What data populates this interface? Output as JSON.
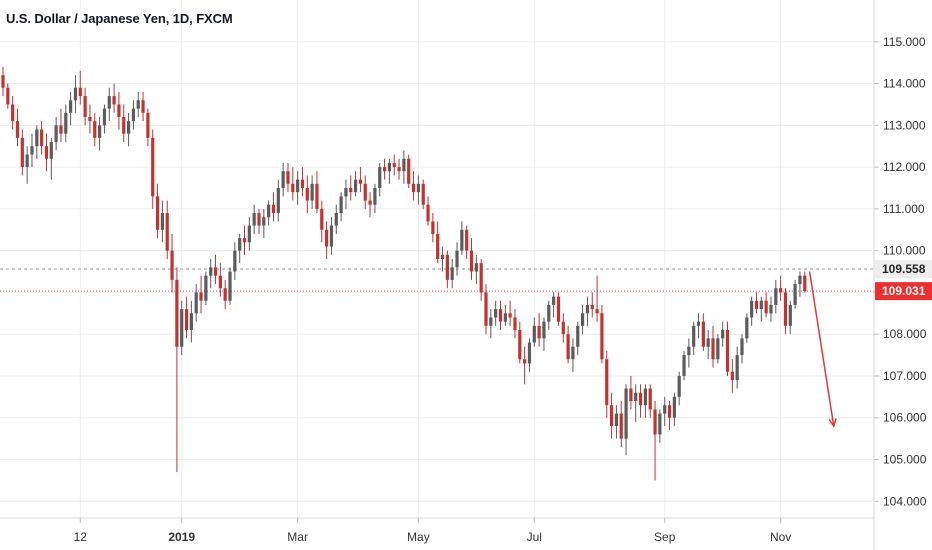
{
  "header": {
    "title": "U.S. Dollar / Japanese Yen, 1D, FXCM"
  },
  "colors": {
    "up": "#5b5b5b",
    "down": "#c43230",
    "grid": "#eeeeee",
    "axis_line": "#d8d8d8",
    "resistance": "#c8c8c8",
    "current": "#ef5350",
    "arrow": "#e53935",
    "current_label_bg": "#ef2f2f",
    "resistance_label_bg": "#eeeeee"
  },
  "chart_data": {
    "type": "candlestick",
    "symbol": "U.S. Dollar / Japanese Yen",
    "interval": "1D",
    "source": "FXCM",
    "ylim": [
      103.6,
      116.0
    ],
    "y_ticks": [
      "104.000",
      "105.000",
      "106.000",
      "107.000",
      "108.000",
      "109.000",
      "110.000",
      "111.000",
      "112.000",
      "113.000",
      "114.000",
      "115.000"
    ],
    "x_ticks": [
      {
        "label": "12",
        "index": 16,
        "bold": false
      },
      {
        "label": "2019",
        "index": 37,
        "bold": true
      },
      {
        "label": "Mar",
        "index": 61,
        "bold": false
      },
      {
        "label": "May",
        "index": 86,
        "bold": false
      },
      {
        "label": "Jul",
        "index": 110,
        "bold": false
      },
      {
        "label": "Sep",
        "index": 137,
        "bold": false
      },
      {
        "label": "Nov",
        "index": 161,
        "bold": false
      }
    ],
    "price_levels": [
      {
        "name": "resistance",
        "value": 109.558,
        "label": "109.558",
        "style": "dashed-grey"
      },
      {
        "name": "current",
        "value": 109.031,
        "label": "109.031",
        "style": "dotted-red"
      }
    ],
    "projection_arrow": {
      "from_index": 167,
      "from_value": 109.5,
      "to_index": 172,
      "to_value": 105.8
    },
    "candles": [
      [
        0,
        114.2,
        114.4,
        113.7,
        113.9
      ],
      [
        1,
        113.9,
        114.0,
        113.4,
        113.5
      ],
      [
        2,
        113.5,
        113.7,
        112.9,
        113.1
      ],
      [
        3,
        113.1,
        113.4,
        112.5,
        112.7
      ],
      [
        4,
        112.7,
        112.9,
        111.8,
        112.0
      ],
      [
        5,
        112.0,
        112.5,
        111.6,
        112.3
      ],
      [
        6,
        112.3,
        112.8,
        112.0,
        112.5
      ],
      [
        7,
        112.5,
        113.0,
        112.2,
        112.9
      ],
      [
        8,
        112.9,
        113.1,
        112.3,
        112.5
      ],
      [
        9,
        112.5,
        112.8,
        111.9,
        112.2
      ],
      [
        10,
        112.2,
        112.7,
        111.7,
        112.6
      ],
      [
        11,
        112.6,
        113.2,
        112.4,
        113.0
      ],
      [
        12,
        113.0,
        113.4,
        112.6,
        112.8
      ],
      [
        13,
        112.8,
        113.5,
        112.6,
        113.3
      ],
      [
        14,
        113.3,
        113.8,
        113.0,
        113.6
      ],
      [
        15,
        113.6,
        114.2,
        113.3,
        113.9
      ],
      [
        16,
        113.9,
        114.3,
        113.5,
        113.7
      ],
      [
        17,
        113.7,
        113.9,
        113.0,
        113.2
      ],
      [
        18,
        113.2,
        113.5,
        112.8,
        113.1
      ],
      [
        19,
        113.1,
        113.3,
        112.5,
        112.7
      ],
      [
        20,
        112.7,
        113.2,
        112.4,
        113.0
      ],
      [
        21,
        113.0,
        113.5,
        112.8,
        113.4
      ],
      [
        22,
        113.4,
        113.9,
        113.1,
        113.7
      ],
      [
        23,
        113.7,
        114.0,
        113.3,
        113.5
      ],
      [
        24,
        113.5,
        113.8,
        112.9,
        113.2
      ],
      [
        25,
        113.2,
        113.5,
        112.6,
        112.8
      ],
      [
        26,
        112.8,
        113.3,
        112.5,
        113.1
      ],
      [
        27,
        113.1,
        113.6,
        112.9,
        113.4
      ],
      [
        28,
        113.4,
        113.8,
        113.2,
        113.6
      ],
      [
        29,
        113.6,
        113.8,
        113.1,
        113.3
      ],
      [
        30,
        113.3,
        113.4,
        112.5,
        112.7
      ],
      [
        31,
        112.7,
        112.9,
        111.0,
        111.3
      ],
      [
        32,
        111.3,
        111.6,
        110.3,
        110.5
      ],
      [
        33,
        110.5,
        111.2,
        110.2,
        110.9
      ],
      [
        34,
        110.9,
        111.2,
        109.8,
        110.0
      ],
      [
        35,
        110.0,
        110.4,
        109.0,
        109.3
      ],
      [
        36,
        109.3,
        109.6,
        104.7,
        107.7
      ],
      [
        37,
        107.7,
        108.8,
        107.5,
        108.6
      ],
      [
        38,
        108.6,
        108.9,
        107.9,
        108.1
      ],
      [
        39,
        108.1,
        108.8,
        107.8,
        108.5
      ],
      [
        40,
        108.5,
        109.2,
        108.3,
        109.0
      ],
      [
        41,
        109.0,
        109.4,
        108.5,
        108.8
      ],
      [
        42,
        108.8,
        109.5,
        108.7,
        109.4
      ],
      [
        43,
        109.4,
        109.8,
        109.1,
        109.6
      ],
      [
        44,
        109.6,
        109.9,
        109.2,
        109.4
      ],
      [
        45,
        109.4,
        109.7,
        108.9,
        109.1
      ],
      [
        46,
        109.1,
        109.3,
        108.6,
        108.8
      ],
      [
        47,
        108.8,
        109.6,
        108.7,
        109.5
      ],
      [
        48,
        109.5,
        110.2,
        109.3,
        110.0
      ],
      [
        49,
        110.0,
        110.4,
        109.7,
        110.3
      ],
      [
        50,
        110.3,
        110.6,
        109.9,
        110.2
      ],
      [
        51,
        110.2,
        110.8,
        110.0,
        110.6
      ],
      [
        52,
        110.6,
        111.1,
        110.4,
        110.9
      ],
      [
        53,
        110.9,
        111.0,
        110.4,
        110.6
      ],
      [
        54,
        110.6,
        111.0,
        110.3,
        110.8
      ],
      [
        55,
        110.8,
        111.2,
        110.6,
        111.1
      ],
      [
        56,
        111.1,
        111.4,
        110.7,
        110.9
      ],
      [
        57,
        110.9,
        111.7,
        110.7,
        111.5
      ],
      [
        58,
        111.5,
        112.1,
        111.3,
        111.9
      ],
      [
        59,
        111.9,
        112.1,
        111.4,
        111.6
      ],
      [
        60,
        111.6,
        112.0,
        111.2,
        111.4
      ],
      [
        61,
        111.4,
        111.9,
        111.1,
        111.7
      ],
      [
        62,
        111.7,
        112.0,
        111.3,
        111.5
      ],
      [
        63,
        111.5,
        111.8,
        110.9,
        111.2
      ],
      [
        64,
        111.2,
        111.8,
        111.0,
        111.6
      ],
      [
        65,
        111.6,
        111.9,
        110.9,
        111.0
      ],
      [
        66,
        111.0,
        111.2,
        110.2,
        110.5
      ],
      [
        67,
        110.5,
        110.7,
        109.8,
        110.1
      ],
      [
        68,
        110.1,
        110.8,
        109.9,
        110.6
      ],
      [
        69,
        110.6,
        111.1,
        110.4,
        110.9
      ],
      [
        70,
        110.9,
        111.4,
        110.7,
        111.3
      ],
      [
        71,
        111.3,
        111.7,
        111.0,
        111.5
      ],
      [
        72,
        111.5,
        111.8,
        111.2,
        111.4
      ],
      [
        73,
        111.4,
        111.9,
        111.3,
        111.7
      ],
      [
        74,
        111.7,
        112.0,
        111.4,
        111.6
      ],
      [
        75,
        111.6,
        111.8,
        111.0,
        111.2
      ],
      [
        76,
        111.2,
        111.4,
        110.8,
        111.1
      ],
      [
        77,
        111.1,
        111.6,
        110.9,
        111.5
      ],
      [
        78,
        111.5,
        112.1,
        111.3,
        112.0
      ],
      [
        79,
        112.0,
        112.2,
        111.7,
        111.9
      ],
      [
        80,
        111.9,
        112.2,
        111.6,
        112.1
      ],
      [
        81,
        112.1,
        112.3,
        111.8,
        112.0
      ],
      [
        82,
        112.0,
        112.2,
        111.7,
        111.9
      ],
      [
        83,
        111.9,
        112.4,
        111.6,
        112.2
      ],
      [
        84,
        112.2,
        112.3,
        111.5,
        111.6
      ],
      [
        85,
        111.6,
        111.9,
        111.2,
        111.4
      ],
      [
        86,
        111.4,
        111.8,
        111.1,
        111.6
      ],
      [
        87,
        111.6,
        111.7,
        111.0,
        111.1
      ],
      [
        88,
        111.1,
        111.3,
        110.6,
        110.7
      ],
      [
        89,
        110.7,
        110.9,
        110.2,
        110.4
      ],
      [
        90,
        110.4,
        110.7,
        109.7,
        109.8
      ],
      [
        91,
        109.8,
        110.1,
        109.5,
        109.9
      ],
      [
        92,
        109.9,
        110.0,
        109.1,
        109.3
      ],
      [
        93,
        109.3,
        109.8,
        109.1,
        109.6
      ],
      [
        94,
        109.6,
        110.2,
        109.4,
        110.0
      ],
      [
        95,
        110.0,
        110.7,
        109.9,
        110.5
      ],
      [
        96,
        110.5,
        110.6,
        109.8,
        110.0
      ],
      [
        97,
        110.0,
        110.3,
        109.3,
        109.5
      ],
      [
        98,
        109.5,
        109.9,
        109.2,
        109.7
      ],
      [
        99,
        109.7,
        109.8,
        108.8,
        109.0
      ],
      [
        100,
        109.0,
        109.2,
        108.0,
        108.2
      ],
      [
        101,
        108.2,
        108.6,
        107.9,
        108.4
      ],
      [
        102,
        108.4,
        108.8,
        108.2,
        108.6
      ],
      [
        103,
        108.6,
        108.8,
        108.1,
        108.3
      ],
      [
        104,
        108.3,
        108.7,
        108.2,
        108.5
      ],
      [
        105,
        108.5,
        108.8,
        108.2,
        108.4
      ],
      [
        106,
        108.4,
        108.6,
        107.9,
        108.1
      ],
      [
        107,
        108.1,
        108.3,
        107.3,
        107.4
      ],
      [
        108,
        107.4,
        107.7,
        106.8,
        107.3
      ],
      [
        109,
        107.3,
        107.9,
        107.1,
        107.8
      ],
      [
        110,
        107.8,
        108.4,
        107.7,
        108.2
      ],
      [
        111,
        108.2,
        108.5,
        107.7,
        107.9
      ],
      [
        112,
        107.9,
        108.4,
        107.6,
        108.3
      ],
      [
        113,
        108.3,
        108.8,
        108.1,
        108.7
      ],
      [
        114,
        108.7,
        109.0,
        108.4,
        108.9
      ],
      [
        115,
        108.9,
        109.0,
        108.2,
        108.3
      ],
      [
        116,
        108.3,
        108.5,
        107.8,
        108.0
      ],
      [
        117,
        108.0,
        108.2,
        107.3,
        107.4
      ],
      [
        118,
        107.4,
        107.9,
        107.1,
        107.7
      ],
      [
        119,
        107.7,
        108.3,
        107.5,
        108.2
      ],
      [
        120,
        108.2,
        108.7,
        108.0,
        108.5
      ],
      [
        121,
        108.5,
        108.9,
        108.2,
        108.7
      ],
      [
        122,
        108.7,
        109.0,
        108.4,
        108.6
      ],
      [
        123,
        108.6,
        109.4,
        108.3,
        108.5
      ],
      [
        124,
        108.5,
        108.7,
        107.3,
        107.4
      ],
      [
        125,
        107.4,
        107.6,
        106.0,
        106.3
      ],
      [
        126,
        106.3,
        106.6,
        105.5,
        105.8
      ],
      [
        127,
        105.8,
        106.3,
        105.5,
        106.1
      ],
      [
        128,
        106.1,
        106.4,
        105.3,
        105.5
      ],
      [
        129,
        105.5,
        106.8,
        105.1,
        106.7
      ],
      [
        130,
        106.7,
        107.0,
        106.2,
        106.4
      ],
      [
        131,
        106.4,
        106.8,
        105.9,
        106.6
      ],
      [
        132,
        106.6,
        106.8,
        106.0,
        106.3
      ],
      [
        133,
        106.3,
        106.8,
        106.0,
        106.7
      ],
      [
        134,
        106.7,
        106.8,
        106.0,
        106.2
      ],
      [
        135,
        106.2,
        106.4,
        104.5,
        105.6
      ],
      [
        136,
        105.6,
        106.2,
        105.4,
        106.1
      ],
      [
        137,
        106.1,
        106.5,
        105.8,
        106.3
      ],
      [
        138,
        106.3,
        106.4,
        105.7,
        106.0
      ],
      [
        139,
        106.0,
        106.6,
        105.8,
        106.5
      ],
      [
        140,
        106.5,
        107.1,
        106.3,
        107.0
      ],
      [
        141,
        107.0,
        107.6,
        106.9,
        107.5
      ],
      [
        142,
        107.5,
        107.9,
        107.2,
        107.7
      ],
      [
        143,
        107.7,
        108.3,
        107.5,
        108.2
      ],
      [
        144,
        108.2,
        108.5,
        107.9,
        108.3
      ],
      [
        145,
        108.3,
        108.5,
        107.6,
        107.7
      ],
      [
        146,
        107.7,
        108.1,
        107.4,
        107.9
      ],
      [
        147,
        107.9,
        108.2,
        107.2,
        107.4
      ],
      [
        148,
        107.4,
        108.0,
        107.3,
        107.9
      ],
      [
        149,
        107.9,
        108.3,
        107.7,
        108.1
      ],
      [
        150,
        108.1,
        108.3,
        107.0,
        107.1
      ],
      [
        151,
        107.1,
        107.4,
        106.6,
        106.9
      ],
      [
        152,
        106.9,
        107.7,
        106.7,
        107.5
      ],
      [
        153,
        107.5,
        108.0,
        107.3,
        107.9
      ],
      [
        154,
        107.9,
        108.5,
        107.8,
        108.4
      ],
      [
        155,
        108.4,
        108.9,
        108.2,
        108.8
      ],
      [
        156,
        108.8,
        109.0,
        108.5,
        108.6
      ],
      [
        157,
        108.6,
        108.9,
        108.3,
        108.8
      ],
      [
        158,
        108.8,
        109.0,
        108.4,
        108.5
      ],
      [
        159,
        108.5,
        108.9,
        108.3,
        108.7
      ],
      [
        160,
        108.7,
        109.3,
        108.5,
        109.1
      ],
      [
        161,
        109.1,
        109.4,
        108.8,
        109.0
      ],
      [
        162,
        109.0,
        109.1,
        108.0,
        108.2
      ],
      [
        163,
        108.2,
        108.8,
        108.0,
        108.7
      ],
      [
        164,
        108.7,
        109.3,
        108.6,
        109.2
      ],
      [
        165,
        109.2,
        109.5,
        108.9,
        109.4
      ],
      [
        166,
        109.4,
        109.5,
        109.0,
        109.031
      ]
    ]
  }
}
